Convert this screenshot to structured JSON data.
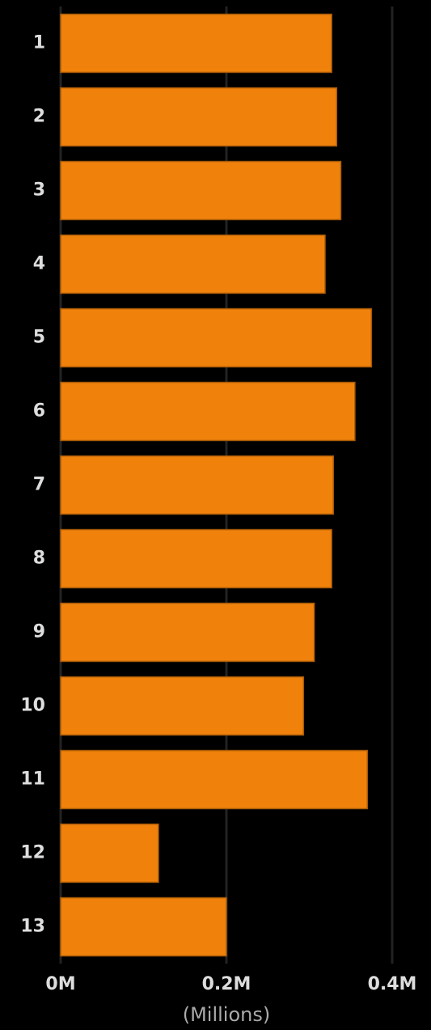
{
  "chart_data": {
    "type": "bar",
    "orientation": "horizontal",
    "categories": [
      "1",
      "2",
      "3",
      "4",
      "5",
      "6",
      "7",
      "8",
      "9",
      "10",
      "11",
      "12",
      "13"
    ],
    "values": [
      0.327,
      0.333,
      0.338,
      0.319,
      0.375,
      0.355,
      0.329,
      0.327,
      0.306,
      0.293,
      0.37,
      0.118,
      0.2
    ],
    "color": "#f0820c",
    "x_label": "(Millions)",
    "xlim": [
      0,
      0.4
    ],
    "xticks": [
      {
        "value": 0,
        "label": "0M"
      },
      {
        "value": 0.2,
        "label": "0.2M"
      },
      {
        "value": 0.4,
        "label": "0.4M"
      }
    ],
    "grid": true
  }
}
